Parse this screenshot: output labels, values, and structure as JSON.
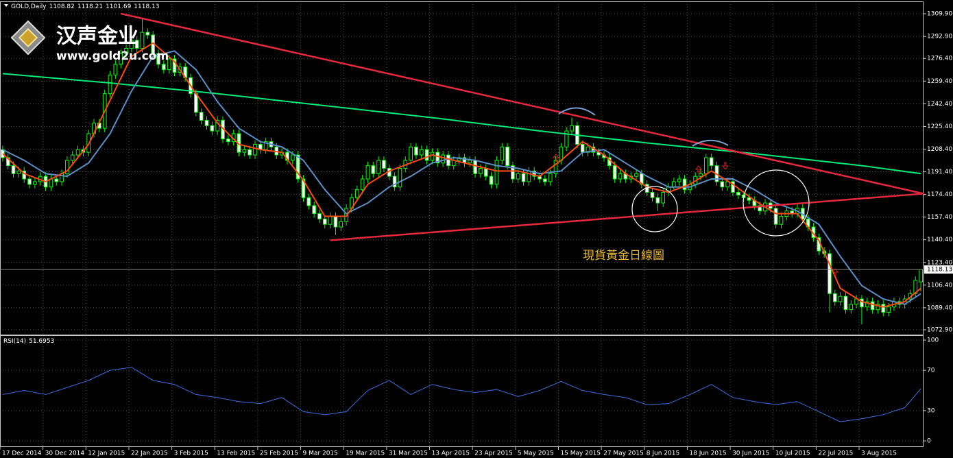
{
  "logo": {
    "name": "汉声金业",
    "url": "www.gold2u.com"
  },
  "chart_data": [
    {
      "type": "candlestick",
      "title": "GOLD,Daily",
      "annotation": "現貨黃金日線圖",
      "categories": [
        "17 Dec 2014",
        null,
        null,
        null,
        null,
        null,
        null,
        null,
        "30 Dec 2014",
        null,
        null,
        null,
        null,
        null,
        null,
        null,
        "12 Jan 2015",
        null,
        null,
        null,
        null,
        null,
        null,
        null,
        "22 Jan 2015",
        null,
        null,
        null,
        null,
        null,
        null,
        null,
        "3 Feb 2015",
        null,
        null,
        null,
        null,
        null,
        null,
        null,
        "13 Feb 2015",
        null,
        null,
        null,
        null,
        null,
        null,
        null,
        "25 Feb 2015",
        null,
        null,
        null,
        null,
        null,
        null,
        null,
        "9 Mar 2015",
        null,
        null,
        null,
        null,
        null,
        null,
        null,
        "19 Mar 2015",
        null,
        null,
        null,
        null,
        null,
        null,
        null,
        "31 Mar 2015",
        null,
        null,
        null,
        null,
        null,
        null,
        null,
        "13 Apr 2015",
        null,
        null,
        null,
        null,
        null,
        null,
        null,
        "23 Apr 2015",
        null,
        null,
        null,
        null,
        null,
        null,
        null,
        "5 May 2015",
        null,
        null,
        null,
        null,
        null,
        null,
        null,
        "15 May 2015",
        null,
        null,
        null,
        null,
        null,
        null,
        null,
        "27 May 2015",
        null,
        null,
        null,
        null,
        null,
        null,
        null,
        "8 Jun 2015",
        null,
        null,
        null,
        null,
        null,
        null,
        null,
        "18 Jun 2015",
        null,
        null,
        null,
        null,
        null,
        null,
        null,
        "30 Jun 2015",
        null,
        null,
        null,
        null,
        null,
        null,
        null,
        "10 Jul 2015",
        null,
        null,
        null,
        null,
        null,
        null,
        null,
        "22 Jul 2015",
        null,
        null,
        null,
        null,
        null,
        null,
        null,
        "3 Aug 2015",
        null,
        null,
        null,
        null,
        null,
        null,
        null,
        null,
        null,
        null,
        null
      ],
      "open": [
        1208,
        1202,
        1196,
        1190,
        1192,
        1186,
        1182,
        1184,
        1188,
        1180,
        1186,
        1184,
        1190,
        1200,
        1204,
        1208,
        1206,
        1220,
        1228,
        1224,
        1250,
        1264,
        1272,
        1280,
        1284,
        1290,
        1284,
        1296,
        1294,
        1280,
        1272,
        1268,
        1276,
        1266,
        1270,
        1262,
        1250,
        1236,
        1230,
        1226,
        1222,
        1230,
        1216,
        1214,
        1220,
        1206,
        1208,
        1204,
        1212,
        1208,
        1214,
        1210,
        1204,
        1206,
        1200,
        1204,
        1186,
        1172,
        1166,
        1160,
        1156,
        1152,
        1158,
        1150,
        1154,
        1164,
        1172,
        1178,
        1186,
        1196,
        1190,
        1200,
        1194,
        1188,
        1180,
        1194,
        1200,
        1210,
        1204,
        1208,
        1200,
        1206,
        1198,
        1204,
        1196,
        1200,
        1202,
        1198,
        1200,
        1190,
        1194,
        1188,
        1182,
        1200,
        1210,
        1196,
        1186,
        1190,
        1184,
        1192,
        1188,
        1186,
        1184,
        1190,
        1200,
        1210,
        1222,
        1226,
        1212,
        1206,
        1210,
        1206,
        1204,
        1202,
        1196,
        1186,
        1190,
        1186,
        1188,
        1190,
        1182,
        1176,
        1172,
        1168,
        1176,
        1180,
        1184,
        1186,
        1178,
        1182,
        1188,
        1190,
        1202,
        1196,
        1184,
        1180,
        1184,
        1176,
        1174,
        1172,
        1170,
        1166,
        1162,
        1168,
        1164,
        1152,
        1158,
        1162,
        1160,
        1164,
        1156,
        1150,
        1142,
        1132,
        1130,
        1100,
        1094,
        1098,
        1088,
        1092,
        1096,
        1090,
        1094,
        1088,
        1092,
        1086,
        1090,
        1094,
        1092,
        1096,
        1100,
        1108.82
      ],
      "high": [
        1211,
        1205,
        1199,
        1195,
        1195,
        1189,
        1187,
        1191,
        1191,
        1189,
        1189,
        1193,
        1203,
        1207,
        1211,
        1211,
        1223,
        1231,
        1231,
        1253,
        1267,
        1275,
        1283,
        1287,
        1293,
        1293,
        1306,
        1299,
        1297,
        1283,
        1275,
        1279,
        1279,
        1273,
        1273,
        1265,
        1253,
        1239,
        1233,
        1229,
        1233,
        1233,
        1219,
        1223,
        1223,
        1211,
        1211,
        1215,
        1215,
        1217,
        1217,
        1213,
        1209,
        1209,
        1207,
        1207,
        1189,
        1175,
        1169,
        1163,
        1159,
        1161,
        1161,
        1157,
        1167,
        1175,
        1181,
        1189,
        1199,
        1199,
        1203,
        1203,
        1197,
        1191,
        1197,
        1203,
        1213,
        1213,
        1211,
        1211,
        1209,
        1209,
        1207,
        1207,
        1203,
        1205,
        1205,
        1203,
        1203,
        1197,
        1197,
        1191,
        1203,
        1213,
        1213,
        1199,
        1193,
        1193,
        1195,
        1195,
        1191,
        1189,
        1193,
        1203,
        1213,
        1225,
        1232,
        1229,
        1215,
        1213,
        1213,
        1209,
        1207,
        1205,
        1199,
        1193,
        1193,
        1191,
        1193,
        1193,
        1185,
        1179,
        1175,
        1179,
        1183,
        1187,
        1189,
        1189,
        1185,
        1191,
        1193,
        1205,
        1205,
        1199,
        1187,
        1187,
        1187,
        1179,
        1177,
        1175,
        1173,
        1169,
        1171,
        1171,
        1167,
        1161,
        1165,
        1165,
        1167,
        1167,
        1159,
        1153,
        1145,
        1135,
        1133,
        1103,
        1101,
        1101,
        1095,
        1099,
        1099,
        1097,
        1097,
        1095,
        1095,
        1093,
        1097,
        1097,
        1099,
        1103,
        1113,
        1118.21
      ],
      "low": [
        1199,
        1193,
        1187,
        1187,
        1183,
        1179,
        1179,
        1181,
        1177,
        1177,
        1181,
        1181,
        1187,
        1197,
        1201,
        1203,
        1203,
        1217,
        1221,
        1221,
        1247,
        1261,
        1269,
        1277,
        1281,
        1281,
        1281,
        1291,
        1277,
        1269,
        1265,
        1265,
        1263,
        1263,
        1259,
        1247,
        1233,
        1227,
        1223,
        1219,
        1219,
        1213,
        1211,
        1211,
        1203,
        1203,
        1201,
        1201,
        1205,
        1205,
        1207,
        1201,
        1201,
        1197,
        1197,
        1183,
        1169,
        1163,
        1157,
        1153,
        1149,
        1149,
        1144,
        1147,
        1151,
        1161,
        1169,
        1175,
        1183,
        1187,
        1187,
        1191,
        1185,
        1177,
        1177,
        1191,
        1197,
        1201,
        1201,
        1197,
        1197,
        1195,
        1195,
        1193,
        1193,
        1197,
        1195,
        1195,
        1187,
        1187,
        1185,
        1179,
        1179,
        1197,
        1193,
        1183,
        1183,
        1181,
        1181,
        1185,
        1183,
        1181,
        1181,
        1187,
        1197,
        1207,
        1219,
        1209,
        1203,
        1203,
        1203,
        1201,
        1199,
        1193,
        1183,
        1183,
        1183,
        1183,
        1185,
        1179,
        1173,
        1169,
        1162,
        1165,
        1173,
        1177,
        1181,
        1175,
        1175,
        1179,
        1185,
        1187,
        1193,
        1181,
        1177,
        1177,
        1173,
        1171,
        1169,
        1167,
        1163,
        1159,
        1159,
        1161,
        1149,
        1149,
        1155,
        1157,
        1157,
        1153,
        1147,
        1139,
        1129,
        1127,
        1086,
        1091,
        1091,
        1085,
        1085,
        1089,
        1077,
        1087,
        1085,
        1085,
        1083,
        1083,
        1087,
        1089,
        1089,
        1093,
        1097,
        1101.69
      ],
      "close": [
        1202,
        1196,
        1190,
        1192,
        1186,
        1182,
        1184,
        1188,
        1180,
        1186,
        1184,
        1190,
        1200,
        1204,
        1208,
        1206,
        1220,
        1228,
        1224,
        1250,
        1264,
        1272,
        1280,
        1284,
        1290,
        1284,
        1296,
        1294,
        1280,
        1272,
        1268,
        1276,
        1266,
        1270,
        1262,
        1250,
        1236,
        1230,
        1226,
        1222,
        1230,
        1216,
        1214,
        1220,
        1206,
        1208,
        1204,
        1212,
        1208,
        1214,
        1210,
        1204,
        1206,
        1200,
        1204,
        1186,
        1172,
        1166,
        1160,
        1156,
        1152,
        1158,
        1150,
        1154,
        1164,
        1172,
        1178,
        1186,
        1196,
        1190,
        1200,
        1194,
        1188,
        1180,
        1194,
        1200,
        1210,
        1204,
        1208,
        1200,
        1206,
        1198,
        1204,
        1196,
        1200,
        1202,
        1198,
        1200,
        1190,
        1194,
        1188,
        1182,
        1200,
        1210,
        1196,
        1186,
        1190,
        1184,
        1192,
        1188,
        1186,
        1184,
        1190,
        1200,
        1210,
        1222,
        1226,
        1212,
        1206,
        1210,
        1206,
        1204,
        1202,
        1196,
        1186,
        1190,
        1186,
        1188,
        1190,
        1182,
        1176,
        1172,
        1168,
        1176,
        1180,
        1184,
        1186,
        1178,
        1182,
        1188,
        1190,
        1202,
        1196,
        1184,
        1180,
        1184,
        1176,
        1174,
        1172,
        1170,
        1166,
        1162,
        1168,
        1164,
        1152,
        1158,
        1162,
        1160,
        1164,
        1156,
        1150,
        1142,
        1132,
        1130,
        1100,
        1094,
        1098,
        1088,
        1092,
        1096,
        1090,
        1094,
        1088,
        1092,
        1086,
        1090,
        1094,
        1092,
        1096,
        1100,
        1110,
        1118.13
      ],
      "up_color": "#000000",
      "down_color": "#ffffff",
      "wick_color": "#00ff00",
      "series": [
        {
          "color": "#00ee77",
          "x": [
            0,
            20,
            40,
            60,
            80,
            100,
            120,
            140,
            160,
            171
          ],
          "values": [
            1265,
            1258,
            1250,
            1241,
            1232,
            1222,
            1213,
            1205,
            1196,
            1190
          ]
        },
        {
          "color": "#5b8fc8",
          "x": [
            0,
            4,
            8,
            12,
            16,
            20,
            24,
            28,
            32,
            36,
            40,
            44,
            48,
            52,
            56,
            60,
            64,
            68,
            72,
            76,
            80,
            84,
            88,
            92,
            96,
            100,
            104,
            108,
            112,
            116,
            120,
            124,
            128,
            132,
            136,
            140,
            144,
            148,
            152,
            156,
            160,
            164,
            168,
            171
          ],
          "values": [
            1208,
            1200,
            1190,
            1188,
            1198,
            1220,
            1252,
            1278,
            1282,
            1268,
            1244,
            1224,
            1214,
            1210,
            1200,
            1178,
            1160,
            1168,
            1180,
            1188,
            1198,
            1202,
            1200,
            1196,
            1194,
            1190,
            1192,
            1206,
            1208,
            1198,
            1188,
            1180,
            1180,
            1186,
            1186,
            1178,
            1168,
            1162,
            1152,
            1128,
            1106,
            1096,
            1092,
            1100
          ]
        },
        {
          "color": "#ff4a10",
          "x": [
            0,
            4,
            8,
            12,
            16,
            20,
            24,
            28,
            32,
            36,
            40,
            44,
            48,
            52,
            56,
            60,
            64,
            68,
            72,
            76,
            80,
            84,
            88,
            92,
            96,
            100,
            104,
            108,
            112,
            116,
            120,
            124,
            128,
            132,
            136,
            140,
            144,
            148,
            152,
            156,
            160,
            164,
            168,
            171
          ],
          "values": [
            1205,
            1190,
            1184,
            1192,
            1212,
            1245,
            1278,
            1288,
            1274,
            1250,
            1228,
            1212,
            1208,
            1206,
            1185,
            1158,
            1158,
            1182,
            1192,
            1198,
            1204,
            1200,
            1196,
            1192,
            1192,
            1188,
            1200,
            1214,
            1204,
            1190,
            1180,
            1176,
            1182,
            1192,
            1182,
            1170,
            1160,
            1160,
            1140,
            1104,
            1094,
            1090,
            1094,
            1104
          ]
        }
      ],
      "trendlines": [
        {
          "color": "#e8283c",
          "x": [
            22,
            171.5
          ],
          "values": [
            1310,
            1175
          ]
        },
        {
          "color": "#e8283c",
          "x": [
            61,
            171.5
          ],
          "values": [
            1140,
            1175
          ]
        }
      ],
      "ylim": [
        1069.3,
        1319.2
      ],
      "yticks": [
        {
          "value": 1309.9,
          "label": "1309.90"
        },
        {
          "value": 1292.9,
          "label": "1292.90"
        },
        {
          "value": 1276.4,
          "label": "1276.40"
        },
        {
          "value": 1259.4,
          "label": "1259.40"
        },
        {
          "value": 1242.4,
          "label": "1242.40"
        },
        {
          "value": 1225.4,
          "label": "1225.40"
        },
        {
          "value": 1208.4,
          "label": "1208.40"
        },
        {
          "value": 1191.4,
          "label": "1191.40"
        },
        {
          "value": 1174.4,
          "label": "1174.40"
        },
        {
          "value": 1157.4,
          "label": "1157.40"
        },
        {
          "value": 1140.4,
          "label": "1140.40"
        },
        {
          "value": 1123.4,
          "label": "1123.40"
        },
        {
          "value": 1106.4,
          "label": "1106.40"
        },
        {
          "value": 1089.4,
          "label": "1089.40"
        },
        {
          "value": 1072.9,
          "label": "1072.90"
        }
      ],
      "grid": true
    },
    {
      "type": "line",
      "title": "RSI(14)",
      "color": "#3d6fe0",
      "x": [
        0,
        4,
        8,
        12,
        16,
        20,
        24,
        28,
        32,
        36,
        40,
        44,
        48,
        52,
        56,
        60,
        64,
        68,
        72,
        76,
        80,
        84,
        88,
        92,
        96,
        100,
        104,
        108,
        112,
        116,
        120,
        124,
        128,
        132,
        136,
        140,
        144,
        148,
        152,
        156,
        160,
        164,
        168,
        171
      ],
      "values": [
        46,
        50,
        46,
        53,
        60,
        70,
        73,
        60,
        56,
        46,
        43,
        39,
        37,
        43,
        29,
        26,
        29,
        50,
        60,
        46,
        56,
        51,
        48,
        51,
        44,
        50,
        59,
        50,
        46,
        43,
        36,
        37,
        46,
        56,
        43,
        39,
        36,
        39,
        29,
        19,
        22,
        26,
        33,
        51.6953
      ],
      "ylim": [
        -6.1,
        104.8
      ],
      "yticks": [
        0,
        30,
        70,
        100
      ],
      "grid": true
    }
  ]
}
